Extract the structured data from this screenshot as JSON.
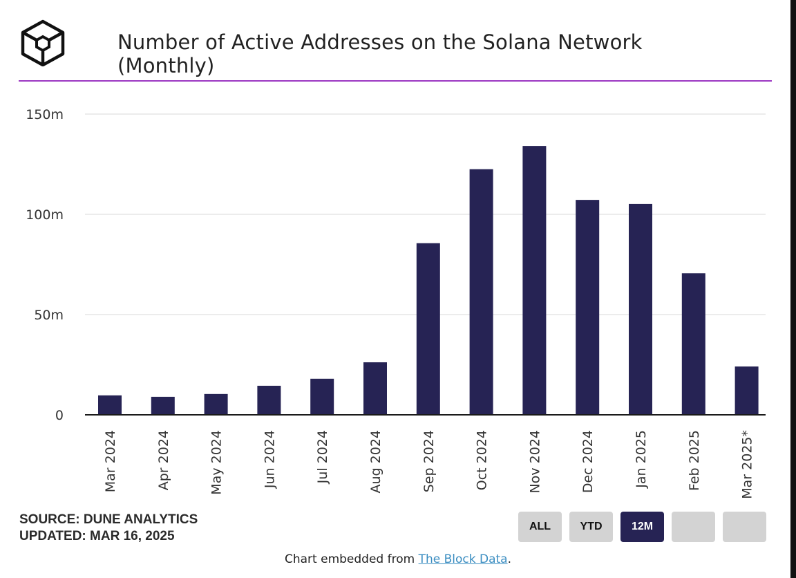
{
  "header": {
    "title": "Number of Active Addresses on the Solana Network (Monthly)"
  },
  "colors": {
    "bar": "#262354",
    "accent_rule": "#9b37c2",
    "grid": "#e6e6e6",
    "active_button": "#262354",
    "inactive_button": "#d3d3d3",
    "link": "#3a8dc1"
  },
  "chart_data": {
    "type": "bar",
    "title": "Number of Active Addresses on the Solana Network (Monthly)",
    "xlabel": "",
    "ylabel": "",
    "categories": [
      "Mar 2024",
      "Apr 2024",
      "May 2024",
      "Jun 2024",
      "Jul 2024",
      "Aug 2024",
      "Sep 2024",
      "Oct 2024",
      "Nov 2024",
      "Dec 2024",
      "Jan 2025",
      "Feb 2025",
      "Mar 2025*"
    ],
    "values": [
      9.7,
      9.0,
      10.4,
      14.5,
      18.0,
      26.2,
      85.6,
      122.5,
      134.1,
      107.2,
      105.2,
      70.6,
      24.1
    ],
    "value_units": "millions",
    "ylim": [
      0,
      150
    ],
    "yticks": [
      0,
      50,
      100,
      150
    ],
    "ytick_labels": [
      "0",
      "50m",
      "100m",
      "150m"
    ],
    "grid": true,
    "legend": "none"
  },
  "footer": {
    "source": "SOURCE: DUNE ANALYTICS",
    "updated": "UPDATED: MAR 16, 2025",
    "embed_prefix": "Chart embedded from ",
    "embed_link": "The Block Data",
    "embed_suffix": "."
  },
  "range_buttons": [
    {
      "label": "ALL",
      "active": false
    },
    {
      "label": "YTD",
      "active": false
    },
    {
      "label": "12M",
      "active": true
    },
    {
      "label": "",
      "active": false
    },
    {
      "label": "",
      "active": false
    }
  ]
}
